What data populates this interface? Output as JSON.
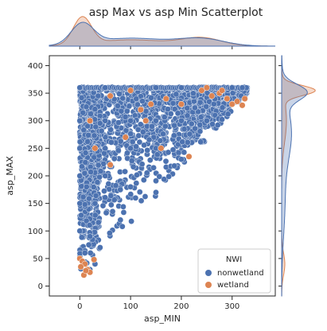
{
  "chart_data": {
    "type": "scatter",
    "title": "asp Max vs asp Min Scatterplot",
    "xlabel": "asp_MIN",
    "ylabel": "asp_MAX",
    "xlim": [
      -60,
      385
    ],
    "ylim": [
      -18,
      418
    ],
    "xticks": [
      0,
      100,
      200,
      300
    ],
    "yticks": [
      0,
      50,
      100,
      150,
      200,
      250,
      300,
      350,
      400
    ],
    "grid": false,
    "legend": {
      "title": "NWI",
      "placement": "lower-right",
      "entries": [
        {
          "label": "nonwetland",
          "color": "#4c72b0"
        },
        {
          "label": "wetland",
          "color": "#dd8452"
        }
      ]
    },
    "series": [
      {
        "name": "nonwetland",
        "color": "#4c72b0",
        "description_region": "dense triangle bounded by x>=0, y<=360, y>=x",
        "sample_points": [
          [
            0,
            360
          ],
          [
            50,
            360
          ],
          [
            100,
            360
          ],
          [
            150,
            360
          ],
          [
            200,
            360
          ],
          [
            250,
            360
          ],
          [
            300,
            360
          ],
          [
            320,
            360
          ],
          [
            0,
            300
          ],
          [
            50,
            300
          ],
          [
            100,
            300
          ],
          [
            150,
            300
          ],
          [
            200,
            300
          ],
          [
            250,
            300
          ],
          [
            0,
            250
          ],
          [
            50,
            250
          ],
          [
            100,
            250
          ],
          [
            150,
            250
          ],
          [
            200,
            230
          ],
          [
            0,
            200
          ],
          [
            50,
            200
          ],
          [
            100,
            180
          ],
          [
            150,
            170
          ],
          [
            0,
            150
          ],
          [
            30,
            150
          ],
          [
            80,
            120
          ],
          [
            0,
            100
          ],
          [
            20,
            90
          ],
          [
            40,
            70
          ],
          [
            10,
            60
          ],
          [
            30,
            40
          ],
          [
            20,
            30
          ]
        ]
      },
      {
        "name": "wetland",
        "color": "#dd8452",
        "sample_points": [
          [
            0,
            50
          ],
          [
            5,
            45
          ],
          [
            10,
            40
          ],
          [
            15,
            30
          ],
          [
            8,
            20
          ],
          [
            2,
            35
          ],
          [
            20,
            25
          ],
          [
            28,
            48
          ],
          [
            12,
            28
          ],
          [
            20,
            300
          ],
          [
            30,
            250
          ],
          [
            120,
            320
          ],
          [
            130,
            300
          ],
          [
            140,
            330
          ],
          [
            170,
            340
          ],
          [
            240,
            355
          ],
          [
            250,
            360
          ],
          [
            260,
            345
          ],
          [
            275,
            350
          ],
          [
            290,
            340
          ],
          [
            300,
            330
          ],
          [
            310,
            335
          ],
          [
            320,
            328
          ],
          [
            325,
            340
          ],
          [
            280,
            355
          ],
          [
            200,
            330
          ],
          [
            215,
            235
          ],
          [
            160,
            250
          ],
          [
            90,
            270
          ],
          [
            60,
            220
          ],
          [
            100,
            355
          ],
          [
            60,
            345
          ]
        ]
      }
    ],
    "marginal_x": {
      "type": "kde",
      "series": [
        {
          "name": "nonwetland",
          "peaks_at": [
            5,
            240
          ]
        },
        {
          "name": "wetland",
          "peaks_at": [
            5,
            250
          ]
        }
      ]
    },
    "marginal_y": {
      "type": "kde",
      "series": [
        {
          "name": "nonwetland",
          "peaks_at": [
            355
          ]
        },
        {
          "name": "wetland",
          "peaks_at": [
            355
          ]
        }
      ]
    }
  }
}
